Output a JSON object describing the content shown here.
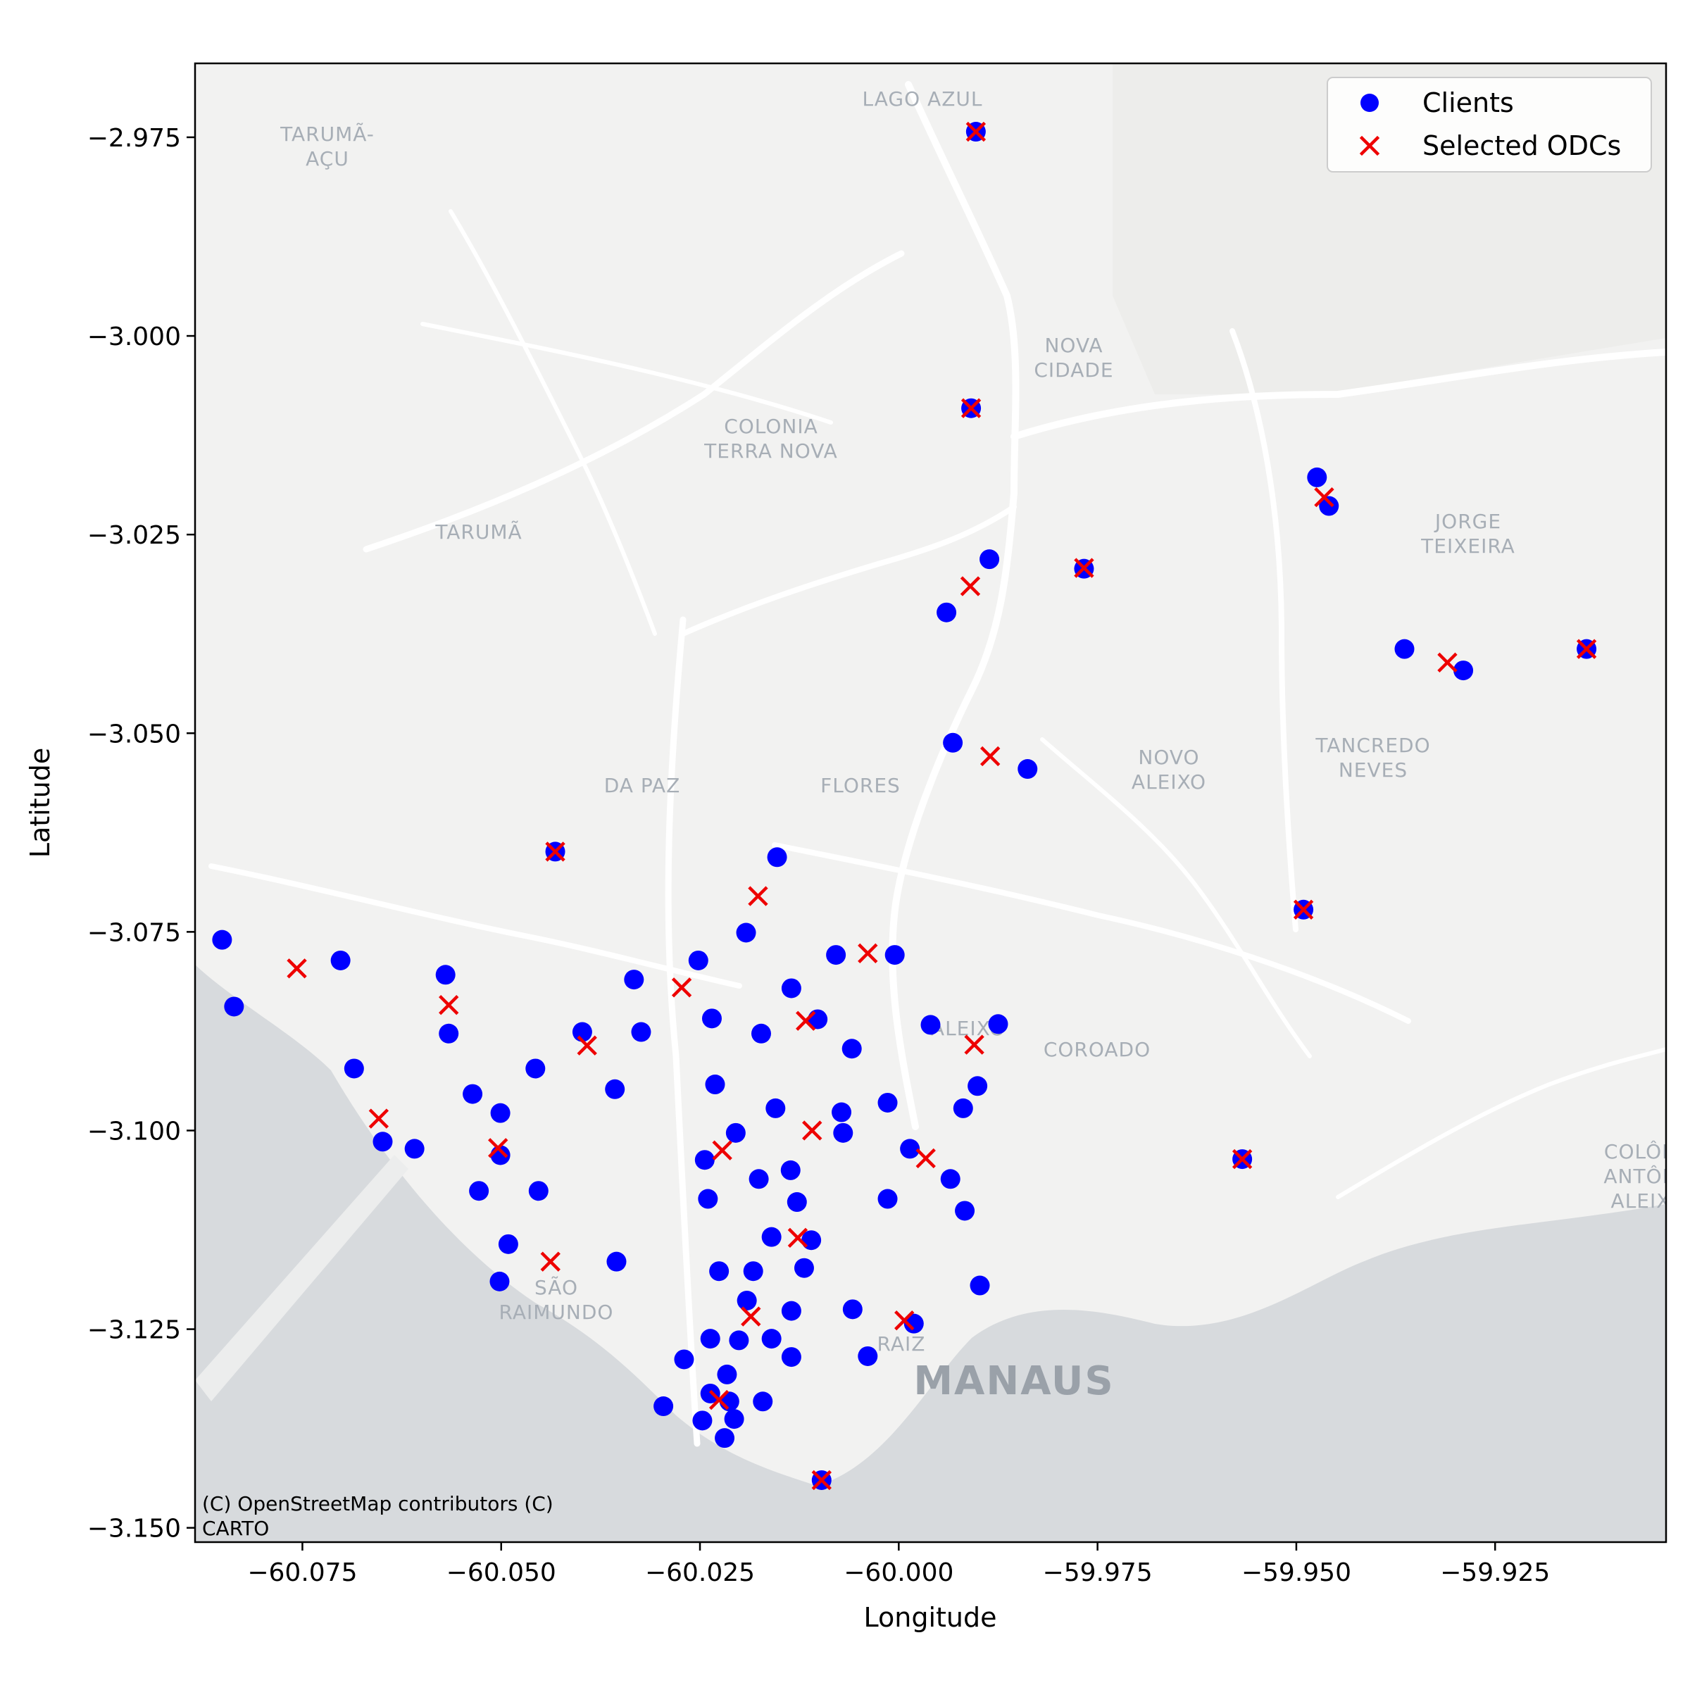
{
  "chart_data": {
    "type": "scatter",
    "xlabel": "Longitude",
    "ylabel": "Latitude",
    "xlim": [
      -60.0885,
      -59.9035
    ],
    "ylim": [
      -3.1518,
      -2.9657
    ],
    "xticks": [
      -60.075,
      -60.05,
      -60.025,
      -60.0,
      -59.975,
      -59.95,
      -59.925
    ],
    "xtick_labels": [
      "−60.075",
      "−60.050",
      "−60.025",
      "−60.000",
      "−59.975",
      "−59.950",
      "−59.925"
    ],
    "yticks": [
      -2.975,
      -3.0,
      -3.025,
      -3.05,
      -3.075,
      -3.1,
      -3.125,
      -3.15
    ],
    "ytick_labels": [
      "−2.975",
      "−3.000",
      "−3.025",
      "−3.050",
      "−3.075",
      "−3.100",
      "−3.125",
      "−3.150"
    ],
    "legend_position": "top-right",
    "grid": false,
    "series": [
      {
        "name": "Clients",
        "marker": "circle",
        "color": "#0000ff",
        "points": [
          [
            -59.9903,
            -2.9743
          ],
          [
            -59.9909,
            -3.0091
          ],
          [
            -59.9474,
            -3.0178
          ],
          [
            -59.9459,
            -3.0214
          ],
          [
            -59.9886,
            -3.0281
          ],
          [
            -59.9767,
            -3.0293
          ],
          [
            -59.994,
            -3.0348
          ],
          [
            -59.9364,
            -3.0394
          ],
          [
            -59.929,
            -3.0421
          ],
          [
            -59.9135,
            -3.0394
          ],
          [
            -59.9932,
            -3.0512
          ],
          [
            -59.9838,
            -3.0545
          ],
          [
            -60.0432,
            -3.0649
          ],
          [
            -60.0153,
            -3.0656
          ],
          [
            -59.9491,
            -3.0722
          ],
          [
            -60.0851,
            -3.076
          ],
          [
            -60.0702,
            -3.0786
          ],
          [
            -60.057,
            -3.0804
          ],
          [
            -60.0836,
            -3.0844
          ],
          [
            -60.0566,
            -3.0878
          ],
          [
            -60.0192,
            -3.0751
          ],
          [
            -60.0252,
            -3.0786
          ],
          [
            -60.0079,
            -3.0779
          ],
          [
            -60.0005,
            -3.0779
          ],
          [
            -60.0333,
            -3.081
          ],
          [
            -60.0135,
            -3.0821
          ],
          [
            -60.0235,
            -3.0859
          ],
          [
            -60.0398,
            -3.0876
          ],
          [
            -60.0324,
            -3.0876
          ],
          [
            -60.0173,
            -3.0878
          ],
          [
            -60.0102,
            -3.086
          ],
          [
            -60.0059,
            -3.0897
          ],
          [
            -59.996,
            -3.0867
          ],
          [
            -59.9875,
            -3.0866
          ],
          [
            -60.0685,
            -3.0922
          ],
          [
            -60.0536,
            -3.0954
          ],
          [
            -60.0457,
            -3.0922
          ],
          [
            -60.0357,
            -3.0948
          ],
          [
            -60.0231,
            -3.0942
          ],
          [
            -60.0155,
            -3.0972
          ],
          [
            -60.0072,
            -3.0977
          ],
          [
            -60.0014,
            -3.0965
          ],
          [
            -59.9919,
            -3.0972
          ],
          [
            -59.9901,
            -3.0944
          ],
          [
            -60.0649,
            -3.1014
          ],
          [
            -60.0609,
            -3.1023
          ],
          [
            -60.0501,
            -3.0978
          ],
          [
            -60.0501,
            -3.1031
          ],
          [
            -60.0528,
            -3.1076
          ],
          [
            -60.0453,
            -3.1076
          ],
          [
            -60.0205,
            -3.1003
          ],
          [
            -60.0244,
            -3.1037
          ],
          [
            -60.007,
            -3.1003
          ],
          [
            -59.9986,
            -3.1023
          ],
          [
            -59.9935,
            -3.1061
          ],
          [
            -60.0176,
            -3.1061
          ],
          [
            -60.0136,
            -3.105
          ],
          [
            -60.0128,
            -3.109
          ],
          [
            -60.024,
            -3.1086
          ],
          [
            -60.0014,
            -3.1086
          ],
          [
            -59.9917,
            -3.1101
          ],
          [
            -60.0491,
            -3.1143
          ],
          [
            -60.0502,
            -3.119
          ],
          [
            -60.0355,
            -3.1165
          ],
          [
            -60.0226,
            -3.1177
          ],
          [
            -60.0183,
            -3.1177
          ],
          [
            -60.016,
            -3.1134
          ],
          [
            -60.011,
            -3.1138
          ],
          [
            -60.0119,
            -3.1173
          ],
          [
            -60.0191,
            -3.1214
          ],
          [
            -60.0135,
            -3.1227
          ],
          [
            -60.0058,
            -3.1225
          ],
          [
            -60.0237,
            -3.1262
          ],
          [
            -60.0201,
            -3.1264
          ],
          [
            -60.016,
            -3.1262
          ],
          [
            -60.0135,
            -3.1285
          ],
          [
            -60.0039,
            -3.1284
          ],
          [
            -59.9981,
            -3.1243
          ],
          [
            -59.9898,
            -3.1195
          ],
          [
            -60.027,
            -3.1288
          ],
          [
            -60.0216,
            -3.1307
          ],
          [
            -60.0237,
            -3.1331
          ],
          [
            -60.0213,
            -3.1341
          ],
          [
            -60.0171,
            -3.1341
          ],
          [
            -60.0296,
            -3.1347
          ],
          [
            -60.0247,
            -3.1365
          ],
          [
            -60.0207,
            -3.1363
          ],
          [
            -60.0219,
            -3.1387
          ],
          [
            -60.0097,
            -3.144
          ],
          [
            -59.9568,
            -3.1036
          ]
        ]
      },
      {
        "name": "Selected ODCs",
        "marker": "x",
        "color": "#ee0000",
        "points": [
          [
            -59.9903,
            -2.9743
          ],
          [
            -59.9909,
            -3.0091
          ],
          [
            -59.9465,
            -3.0203
          ],
          [
            -59.991,
            -3.0315
          ],
          [
            -59.9767,
            -3.0292
          ],
          [
            -59.931,
            -3.0411
          ],
          [
            -59.9135,
            -3.0394
          ],
          [
            -59.9885,
            -3.0529
          ],
          [
            -60.0432,
            -3.0649
          ],
          [
            -60.0177,
            -3.0705
          ],
          [
            -59.9491,
            -3.0722
          ],
          [
            -60.0039,
            -3.0777
          ],
          [
            -60.0757,
            -3.0796
          ],
          [
            -60.0566,
            -3.0842
          ],
          [
            -60.0273,
            -3.082
          ],
          [
            -60.0117,
            -3.0862
          ],
          [
            -60.0392,
            -3.0893
          ],
          [
            -59.9905,
            -3.0892
          ],
          [
            -60.0654,
            -3.0985
          ],
          [
            -60.0504,
            -3.1022
          ],
          [
            -60.0222,
            -3.1025
          ],
          [
            -60.0109,
            -3.1
          ],
          [
            -59.9966,
            -3.1035
          ],
          [
            -60.0127,
            -3.1135
          ],
          [
            -60.0438,
            -3.1165
          ],
          [
            -60.0186,
            -3.1234
          ],
          [
            -59.9993,
            -3.1239
          ],
          [
            -60.0226,
            -3.1339
          ],
          [
            -60.0097,
            -3.144
          ],
          [
            -59.9568,
            -3.1036
          ]
        ]
      }
    ],
    "basemap_labels": [
      {
        "text": "LAGO AZUL"
      },
      {
        "text": "TARUMÃ-"
      },
      {
        "text": "AÇU"
      },
      {
        "text": "NOVA"
      },
      {
        "text": "CIDADE"
      },
      {
        "text": "COLONIA"
      },
      {
        "text": "TERRA NOVA"
      },
      {
        "text": "TARUMÃ"
      },
      {
        "text": "JORGE"
      },
      {
        "text": "TEIXEIRA"
      },
      {
        "text": "NOVO"
      },
      {
        "text": "ALEIXO"
      },
      {
        "text": "TANCREDO"
      },
      {
        "text": "NEVES"
      },
      {
        "text": "DA PAZ"
      },
      {
        "text": "FLORES"
      },
      {
        "text": "ALEIXO"
      },
      {
        "text": "COROADO"
      },
      {
        "text": "COLÔN"
      },
      {
        "text": "ANTÔN"
      },
      {
        "text": "ALEIX"
      },
      {
        "text": "SÃO"
      },
      {
        "text": "RAIMUNDO"
      },
      {
        "text": "RAIZ"
      },
      {
        "text": "MANAUS"
      }
    ],
    "attribution": [
      "(C) OpenStreetMap contributors (C)",
      "CARTO"
    ]
  }
}
